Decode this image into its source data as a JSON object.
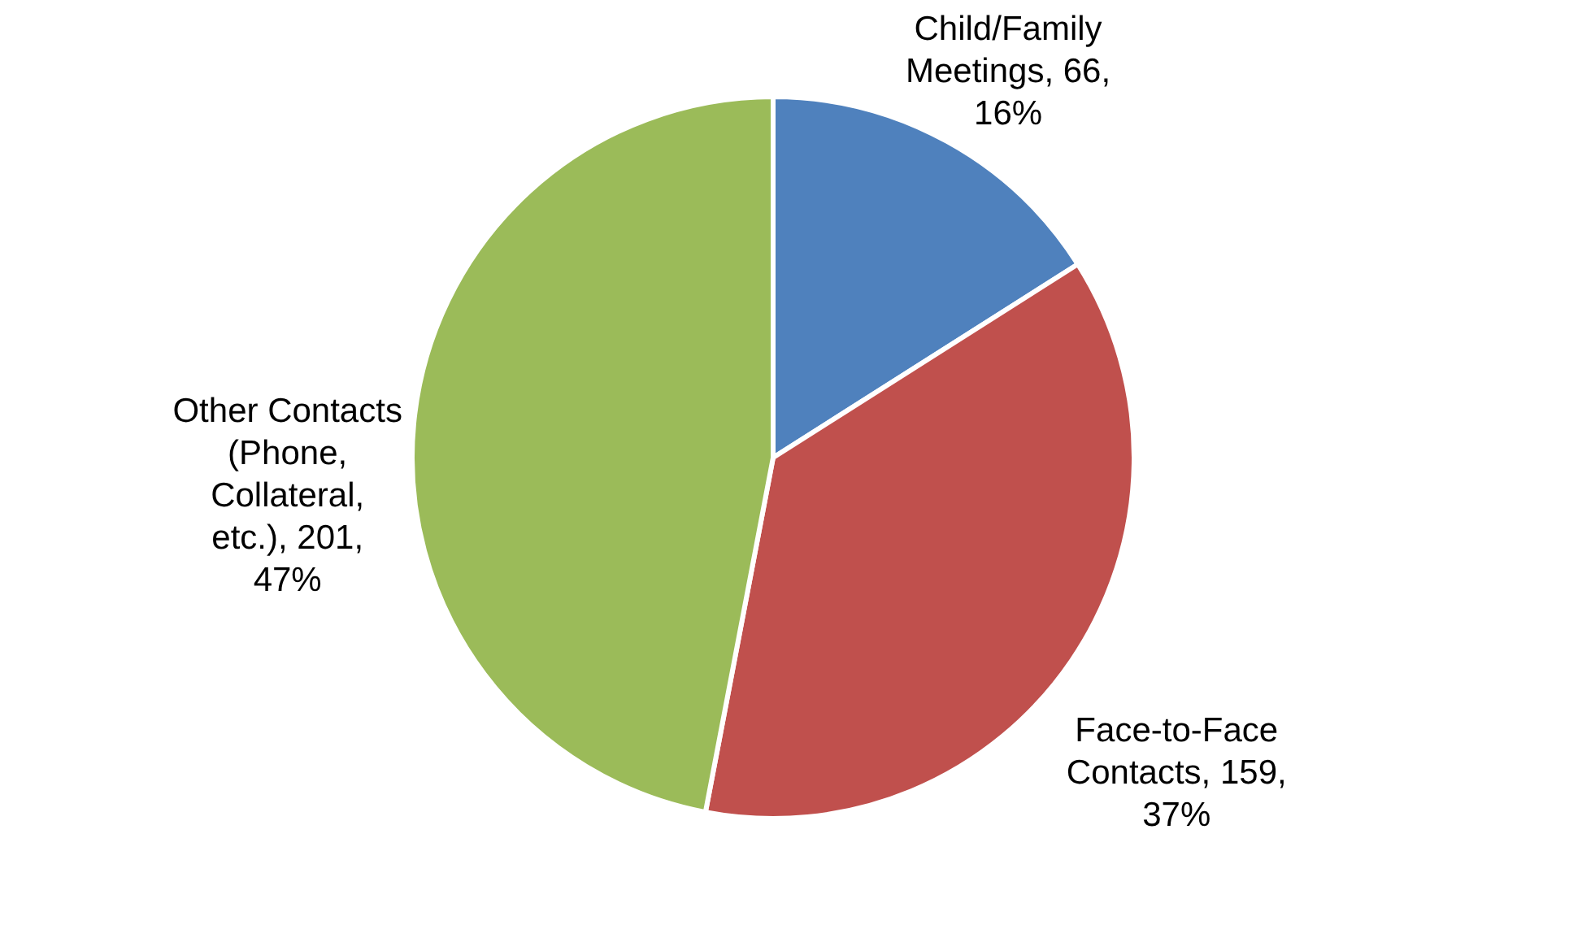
{
  "chart_data": {
    "type": "pie",
    "categories": [
      "Child/Family Meetings",
      "Face-to-Face Contacts",
      "Other Contacts (Phone, Collateral, etc.)"
    ],
    "values": [
      16,
      37,
      47
    ],
    "colors": [
      "#4f81bd",
      "#c0504d",
      "#9bbb59"
    ],
    "value_labels": [
      "66, 16%",
      "159, 37%",
      "201, 47%"
    ],
    "data_labels": true,
    "legend": false
  }
}
